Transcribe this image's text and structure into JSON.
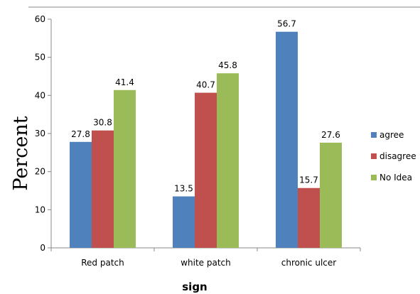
{
  "chart_data": {
    "type": "bar",
    "categories": [
      "Red patch",
      "white patch",
      "chronic ulcer"
    ],
    "series": [
      {
        "name": "agree",
        "values": [
          27.8,
          13.5,
          56.7
        ],
        "color": "#4F81BD"
      },
      {
        "name": "disagree",
        "values": [
          30.8,
          40.7,
          15.7
        ],
        "color": "#C0504D"
      },
      {
        "name": "No Idea",
        "values": [
          41.4,
          45.8,
          27.6
        ],
        "color": "#9BBB59"
      }
    ],
    "data_labels": [
      [
        "27.8",
        "30.8",
        "41.4"
      ],
      [
        "13.5",
        "40.7",
        "45.8"
      ],
      [
        "56.7",
        "15.7",
        "27.6"
      ]
    ],
    "y_ticks": [
      "0",
      "10",
      "20",
      "30",
      "40",
      "50",
      "60"
    ],
    "ylim": [
      0,
      60
    ],
    "xlabel": "sign",
    "ylabel": "Percent",
    "legend_position": "right",
    "grid": false
  }
}
